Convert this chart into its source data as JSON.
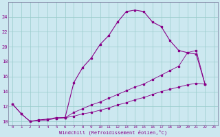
{
  "xlabel": "Windchill (Refroidissement éolien,°C)",
  "bg_color": "#cce8f0",
  "line_color": "#880088",
  "grid_color": "#99cccc",
  "xlim": [
    -0.5,
    23.5
  ],
  "ylim": [
    9.5,
    26.0
  ],
  "yticks": [
    10,
    12,
    14,
    16,
    18,
    20,
    22,
    24
  ],
  "xticks": [
    0,
    1,
    2,
    3,
    4,
    5,
    6,
    7,
    8,
    9,
    10,
    11,
    12,
    13,
    14,
    15,
    16,
    17,
    18,
    19,
    20,
    21,
    22,
    23
  ],
  "line1_x": [
    0,
    1,
    2,
    3,
    4,
    5,
    6,
    7,
    8,
    9,
    10,
    11,
    12,
    13,
    14,
    15,
    16,
    17,
    18,
    19,
    20,
    21,
    22
  ],
  "line1_y": [
    12.3,
    11.0,
    10.0,
    10.2,
    10.3,
    10.5,
    10.5,
    15.2,
    17.2,
    18.5,
    20.3,
    21.5,
    23.3,
    24.7,
    24.9,
    24.7,
    23.3,
    22.7,
    20.8,
    19.5,
    19.2,
    19.0,
    15.0
  ],
  "line2_x": [
    0,
    1,
    2,
    3,
    4,
    5,
    6,
    7,
    8,
    9,
    10,
    11,
    12,
    13,
    14,
    15,
    16,
    17,
    18,
    19,
    20,
    21,
    22
  ],
  "line2_y": [
    12.3,
    11.0,
    10.0,
    10.1,
    10.2,
    10.4,
    10.5,
    10.7,
    11.0,
    11.2,
    11.5,
    11.8,
    12.2,
    12.5,
    12.9,
    13.2,
    13.6,
    14.0,
    14.3,
    14.6,
    14.9,
    15.1,
    15.0
  ],
  "line3_x": [
    5,
    6,
    7,
    8,
    9,
    10,
    11,
    12,
    13,
    14,
    15,
    16,
    17,
    18,
    19,
    20,
    21,
    22
  ],
  "line3_y": [
    10.4,
    10.5,
    11.2,
    11.7,
    12.2,
    12.6,
    13.1,
    13.6,
    14.1,
    14.6,
    15.0,
    15.6,
    16.2,
    16.8,
    17.4,
    19.2,
    19.5,
    15.0
  ]
}
